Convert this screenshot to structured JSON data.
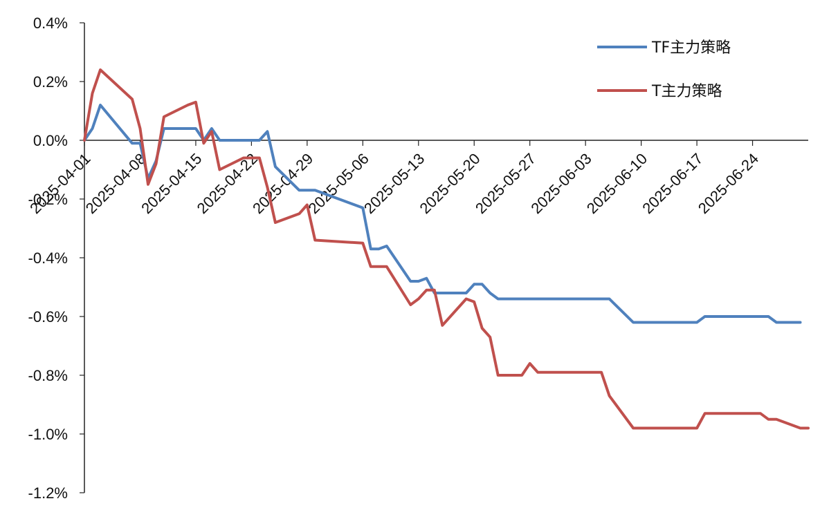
{
  "chart_data": {
    "type": "line",
    "title": "",
    "xlabel": "",
    "ylabel": "",
    "ylim": [
      -0.012,
      0.004
    ],
    "y_ticks": [
      0.004,
      0.002,
      0.0,
      -0.002,
      -0.004,
      -0.006,
      -0.008,
      -0.01,
      -0.012
    ],
    "y_tick_labels": [
      "0.4%",
      "0.2%",
      "0.0%",
      "-0.2%",
      "-0.4%",
      "-0.6%",
      "-0.8%",
      "-1.0%",
      "-1.2%"
    ],
    "x_start": "2025-04-01",
    "x_end": "2025-07-01",
    "x_tick_labels": [
      "2025-04-01",
      "2025-04-08",
      "2025-04-15",
      "2025-04-22",
      "2025-04-29",
      "2025-05-06",
      "2025-05-13",
      "2025-05-20",
      "2025-05-27",
      "2025-06-03",
      "2025-06-10",
      "2025-06-17",
      "2025-06-24"
    ],
    "legend_position": "top-right",
    "grid": false,
    "series": [
      {
        "name": "TF主力策略",
        "color": "#4F81BD",
        "points": [
          [
            "2025-04-01",
            0.0
          ],
          [
            "2025-04-02",
            0.0004
          ],
          [
            "2025-04-03",
            0.0012
          ],
          [
            "2025-04-07",
            -0.0001
          ],
          [
            "2025-04-08",
            -0.0001
          ],
          [
            "2025-04-09",
            -0.0013
          ],
          [
            "2025-04-10",
            -0.0007
          ],
          [
            "2025-04-11",
            0.0004
          ],
          [
            "2025-04-14",
            0.0004
          ],
          [
            "2025-04-15",
            0.0004
          ],
          [
            "2025-04-16",
            0.0
          ],
          [
            "2025-04-17",
            0.0004
          ],
          [
            "2025-04-18",
            0.0
          ],
          [
            "2025-04-21",
            0.0
          ],
          [
            "2025-04-22",
            0.0
          ],
          [
            "2025-04-23",
            0.0
          ],
          [
            "2025-04-24",
            0.0003
          ],
          [
            "2025-04-25",
            -0.0009
          ],
          [
            "2025-04-28",
            -0.0017
          ],
          [
            "2025-04-29",
            -0.0017
          ],
          [
            "2025-04-30",
            -0.0017
          ],
          [
            "2025-05-06",
            -0.0023
          ],
          [
            "2025-05-07",
            -0.0037
          ],
          [
            "2025-05-08",
            -0.0037
          ],
          [
            "2025-05-09",
            -0.0036
          ],
          [
            "2025-05-12",
            -0.0048
          ],
          [
            "2025-05-13",
            -0.0048
          ],
          [
            "2025-05-14",
            -0.0047
          ],
          [
            "2025-05-15",
            -0.0052
          ],
          [
            "2025-05-16",
            -0.0052
          ],
          [
            "2025-05-19",
            -0.0052
          ],
          [
            "2025-05-20",
            -0.0049
          ],
          [
            "2025-05-21",
            -0.0049
          ],
          [
            "2025-05-22",
            -0.0052
          ],
          [
            "2025-05-23",
            -0.0054
          ],
          [
            "2025-06-03",
            -0.0054
          ],
          [
            "2025-06-06",
            -0.0054
          ],
          [
            "2025-06-09",
            -0.0062
          ],
          [
            "2025-06-10",
            -0.0062
          ],
          [
            "2025-06-16",
            -0.0062
          ],
          [
            "2025-06-17",
            -0.0062
          ],
          [
            "2025-06-18",
            -0.006
          ],
          [
            "2025-06-19",
            -0.006
          ],
          [
            "2025-06-26",
            -0.006
          ],
          [
            "2025-06-27",
            -0.0062
          ],
          [
            "2025-06-30",
            -0.0062
          ]
        ]
      },
      {
        "name": "T主力策略",
        "color": "#C0504D",
        "points": [
          [
            "2025-04-01",
            0.0
          ],
          [
            "2025-04-02",
            0.0016
          ],
          [
            "2025-04-03",
            0.0024
          ],
          [
            "2025-04-07",
            0.0014
          ],
          [
            "2025-04-08",
            0.0004
          ],
          [
            "2025-04-09",
            -0.0015
          ],
          [
            "2025-04-10",
            -0.0008
          ],
          [
            "2025-04-11",
            0.0008
          ],
          [
            "2025-04-14",
            0.0012
          ],
          [
            "2025-04-15",
            0.0013
          ],
          [
            "2025-04-16",
            -0.0001
          ],
          [
            "2025-04-17",
            0.0003
          ],
          [
            "2025-04-18",
            -0.001
          ],
          [
            "2025-04-21",
            -0.0006
          ],
          [
            "2025-04-22",
            -0.0006
          ],
          [
            "2025-04-23",
            -0.0006
          ],
          [
            "2025-04-24",
            -0.0016
          ],
          [
            "2025-04-25",
            -0.0028
          ],
          [
            "2025-04-28",
            -0.0025
          ],
          [
            "2025-04-29",
            -0.0022
          ],
          [
            "2025-04-30",
            -0.0034
          ],
          [
            "2025-05-06",
            -0.0035
          ],
          [
            "2025-05-07",
            -0.0043
          ],
          [
            "2025-05-08",
            -0.0043
          ],
          [
            "2025-05-09",
            -0.0043
          ],
          [
            "2025-05-12",
            -0.0056
          ],
          [
            "2025-05-13",
            -0.0054
          ],
          [
            "2025-05-14",
            -0.0051
          ],
          [
            "2025-05-15",
            -0.0051
          ],
          [
            "2025-05-16",
            -0.0063
          ],
          [
            "2025-05-19",
            -0.0054
          ],
          [
            "2025-05-20",
            -0.0055
          ],
          [
            "2025-05-21",
            -0.0064
          ],
          [
            "2025-05-22",
            -0.0067
          ],
          [
            "2025-05-23",
            -0.008
          ],
          [
            "2025-05-26",
            -0.008
          ],
          [
            "2025-05-27",
            -0.0076
          ],
          [
            "2025-05-28",
            -0.0079
          ],
          [
            "2025-06-05",
            -0.0079
          ],
          [
            "2025-06-06",
            -0.0087
          ],
          [
            "2025-06-09",
            -0.0098
          ],
          [
            "2025-06-16",
            -0.0098
          ],
          [
            "2025-06-17",
            -0.0098
          ],
          [
            "2025-06-18",
            -0.0093
          ],
          [
            "2025-06-19",
            -0.0093
          ],
          [
            "2025-06-24",
            -0.0093
          ],
          [
            "2025-06-25",
            -0.0093
          ],
          [
            "2025-06-26",
            -0.0095
          ],
          [
            "2025-06-27",
            -0.0095
          ],
          [
            "2025-06-30",
            -0.0098
          ],
          [
            "2025-07-01",
            -0.0098
          ]
        ]
      }
    ]
  }
}
